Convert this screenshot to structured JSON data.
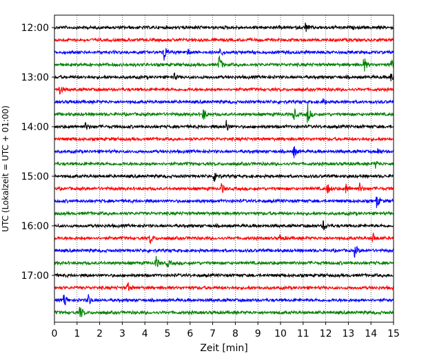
{
  "chart_data": {
    "type": "line",
    "xlabel": "Zeit  [min]",
    "ylabel": "UTC (Lokalzeit = UTC + 01:00)",
    "xlim": [
      0,
      15
    ],
    "x_ticks": [
      0,
      1,
      2,
      3,
      4,
      5,
      6,
      7,
      8,
      9,
      10,
      11,
      12,
      13,
      14,
      15
    ],
    "x_tick_labels": [
      "0",
      "1",
      "2",
      "3",
      "4",
      "5",
      "6",
      "7",
      "8",
      "9",
      "10",
      "11",
      "12",
      "13",
      "14",
      "15"
    ],
    "y_tick_labels": [
      "12:00",
      "13:00",
      "14:00",
      "15:00",
      "16:00",
      "17:00"
    ],
    "rows_per_hour": 4,
    "minutes_per_row": 15,
    "row_colors": [
      "#000000",
      "#ff0000",
      "#0000ff",
      "#008000"
    ],
    "grid": "vertical dotted at each minute",
    "traces": [
      {
        "start": "12:00",
        "events": [
          {
            "x": 11.1,
            "amp": 0.8
          }
        ]
      },
      {
        "start": "12:15",
        "events": []
      },
      {
        "start": "12:30",
        "events": [
          {
            "x": 4.85,
            "amp": 1.5
          },
          {
            "x": 7.35,
            "amp": 0.6
          },
          {
            "x": 5.9,
            "amp": 0.5
          }
        ]
      },
      {
        "start": "12:45",
        "events": [
          {
            "x": 7.3,
            "amp": 1.6
          },
          {
            "x": 13.7,
            "amp": 1.2
          },
          {
            "x": 14.9,
            "amp": 0.9
          }
        ]
      },
      {
        "start": "13:00",
        "events": [
          {
            "x": 14.9,
            "amp": 1.0
          },
          {
            "x": 5.3,
            "amp": 0.5
          }
        ]
      },
      {
        "start": "13:15",
        "events": [
          {
            "x": 0.25,
            "amp": 0.8
          }
        ]
      },
      {
        "start": "13:30",
        "events": [
          {
            "x": 11.9,
            "amp": 0.6
          }
        ]
      },
      {
        "start": "13:45",
        "events": [
          {
            "x": 6.6,
            "amp": 1.0
          },
          {
            "x": 10.6,
            "amp": 1.0
          },
          {
            "x": 11.2,
            "amp": 1.8
          }
        ]
      },
      {
        "start": "14:00",
        "events": [
          {
            "x": 1.4,
            "amp": 0.7
          },
          {
            "x": 7.6,
            "amp": 1.0
          }
        ]
      },
      {
        "start": "14:15",
        "events": []
      },
      {
        "start": "14:30",
        "events": [
          {
            "x": 10.6,
            "amp": 1.0
          },
          {
            "x": 14.3,
            "amp": 0.5
          }
        ]
      },
      {
        "start": "14:45",
        "events": [
          {
            "x": 14.2,
            "amp": 0.6
          }
        ]
      },
      {
        "start": "15:00",
        "events": [
          {
            "x": 7.1,
            "amp": 1.2
          }
        ]
      },
      {
        "start": "15:15",
        "events": [
          {
            "x": 7.4,
            "amp": 0.9
          },
          {
            "x": 12.1,
            "amp": 0.8
          },
          {
            "x": 12.9,
            "amp": 0.9
          },
          {
            "x": 13.5,
            "amp": 0.8
          }
        ]
      },
      {
        "start": "15:30",
        "events": [
          {
            "x": 14.25,
            "amp": 1.3
          }
        ]
      },
      {
        "start": "15:45",
        "events": []
      },
      {
        "start": "16:00",
        "events": [
          {
            "x": 11.9,
            "amp": 0.9
          }
        ]
      },
      {
        "start": "16:15",
        "events": [
          {
            "x": 4.25,
            "amp": 0.9
          },
          {
            "x": 10.0,
            "amp": 0.6
          },
          {
            "x": 14.1,
            "amp": 0.8
          }
        ]
      },
      {
        "start": "16:30",
        "events": [
          {
            "x": 13.3,
            "amp": 1.1
          }
        ]
      },
      {
        "start": "16:45",
        "events": [
          {
            "x": 4.5,
            "amp": 1.0
          },
          {
            "x": 5.0,
            "amp": 0.6
          }
        ]
      },
      {
        "start": "17:00",
        "events": []
      },
      {
        "start": "17:15",
        "events": [
          {
            "x": 3.25,
            "amp": 0.8
          }
        ]
      },
      {
        "start": "17:30",
        "events": [
          {
            "x": 0.45,
            "amp": 1.1
          },
          {
            "x": 1.5,
            "amp": 1.0
          }
        ]
      },
      {
        "start": "17:45",
        "events": [
          {
            "x": 1.15,
            "amp": 1.1
          }
        ]
      }
    ]
  }
}
